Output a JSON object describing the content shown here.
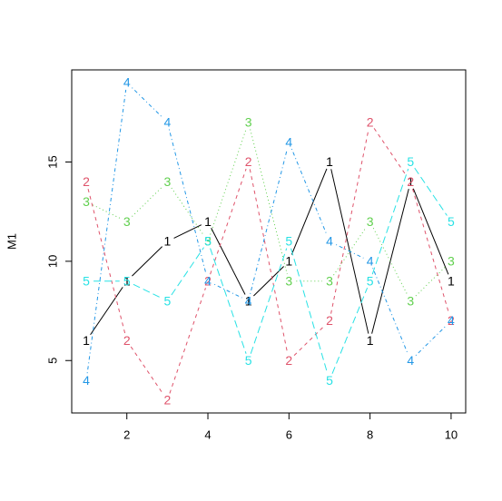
{
  "chart_data": {
    "type": "line",
    "y_label": "M1",
    "x": [
      1,
      2,
      3,
      4,
      5,
      6,
      7,
      8,
      9,
      10
    ],
    "series": [
      {
        "name": "1",
        "color": "#000000",
        "dash": "solid",
        "values": [
          6,
          9,
          11,
          12,
          8,
          10,
          15,
          6,
          14,
          9
        ]
      },
      {
        "name": "2",
        "color": "#DF536B",
        "dash": "dashed",
        "values": [
          14,
          6,
          3,
          9,
          15,
          5,
          7,
          17,
          14,
          7
        ]
      },
      {
        "name": "3",
        "color": "#61D04F",
        "dash": "dotted",
        "values": [
          13,
          12,
          14,
          11,
          17,
          9,
          9,
          12,
          8,
          10
        ]
      },
      {
        "name": "4",
        "color": "#2297E6",
        "dash": "dotdash",
        "values": [
          4,
          19,
          17,
          9,
          8,
          16,
          11,
          10,
          5,
          7
        ]
      },
      {
        "name": "5",
        "color": "#28E2E5",
        "dash": "longdash",
        "values": [
          9,
          9,
          8,
          11,
          5,
          11,
          4,
          9,
          15,
          12
        ]
      }
    ],
    "xlim": [
      0.64,
      10.36
    ],
    "ylim": [
      2.36,
      19.64
    ],
    "xticks": [
      2,
      4,
      6,
      8,
      10
    ],
    "yticks": [
      5,
      10,
      15
    ]
  }
}
